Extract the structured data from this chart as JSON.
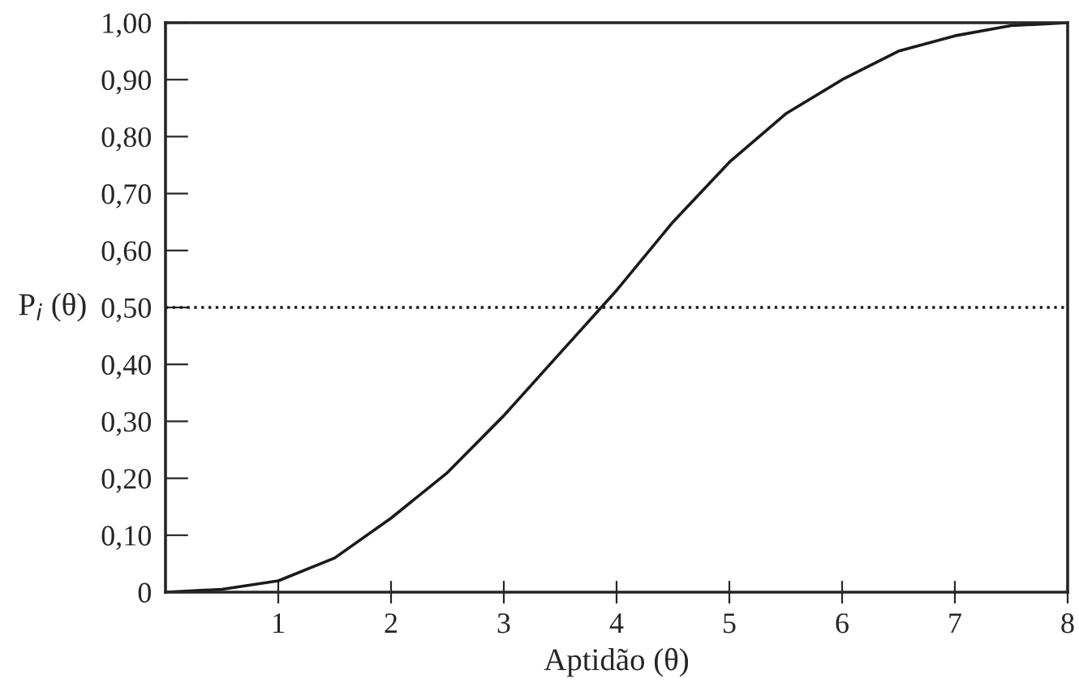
{
  "chart_data": {
    "type": "line",
    "xlabel": "Aptidão (θ)",
    "ylabel": "P$_{i}$ (θ)",
    "x": [
      0,
      0.5,
      1,
      1.5,
      2,
      2.5,
      3,
      3.5,
      4,
      4.5,
      5,
      5.5,
      6,
      6.5,
      7,
      7.5,
      8
    ],
    "series": [
      {
        "color": "#1a1a1a",
        "values": [
          0,
          0.005,
          0.02,
          0.06,
          0.13,
          0.21,
          0.31,
          0.42,
          0.53,
          0.65,
          0.755,
          0.84,
          0.9,
          0.95,
          0.977,
          0.995,
          1.0
        ]
      }
    ],
    "xlim": [
      0,
      8
    ],
    "ylim": [
      0,
      1
    ],
    "xticks": [
      1,
      2,
      3,
      4,
      5,
      6,
      7,
      8
    ],
    "yticks": [
      {
        "value": 0,
        "label": "0"
      },
      {
        "value": 0.1,
        "label": "0,10"
      },
      {
        "value": 0.2,
        "label": "0,20"
      },
      {
        "value": 0.3,
        "label": "0,30"
      },
      {
        "value": 0.4,
        "label": "0,40"
      },
      {
        "value": 0.5,
        "label": "0,50"
      },
      {
        "value": 0.6,
        "label": "0,60"
      },
      {
        "value": 0.7,
        "label": "0,70"
      },
      {
        "value": 0.8,
        "label": "0,80"
      },
      {
        "value": 0.9,
        "label": "0,90"
      },
      {
        "value": 1,
        "label": "1,00"
      }
    ],
    "ref_lines": [
      {
        "axis": "y",
        "value": 0.5,
        "color": "#1a1a1a",
        "line_style": "dotted"
      }
    ],
    "grid": false,
    "marker": "none",
    "line_style": "solid"
  }
}
